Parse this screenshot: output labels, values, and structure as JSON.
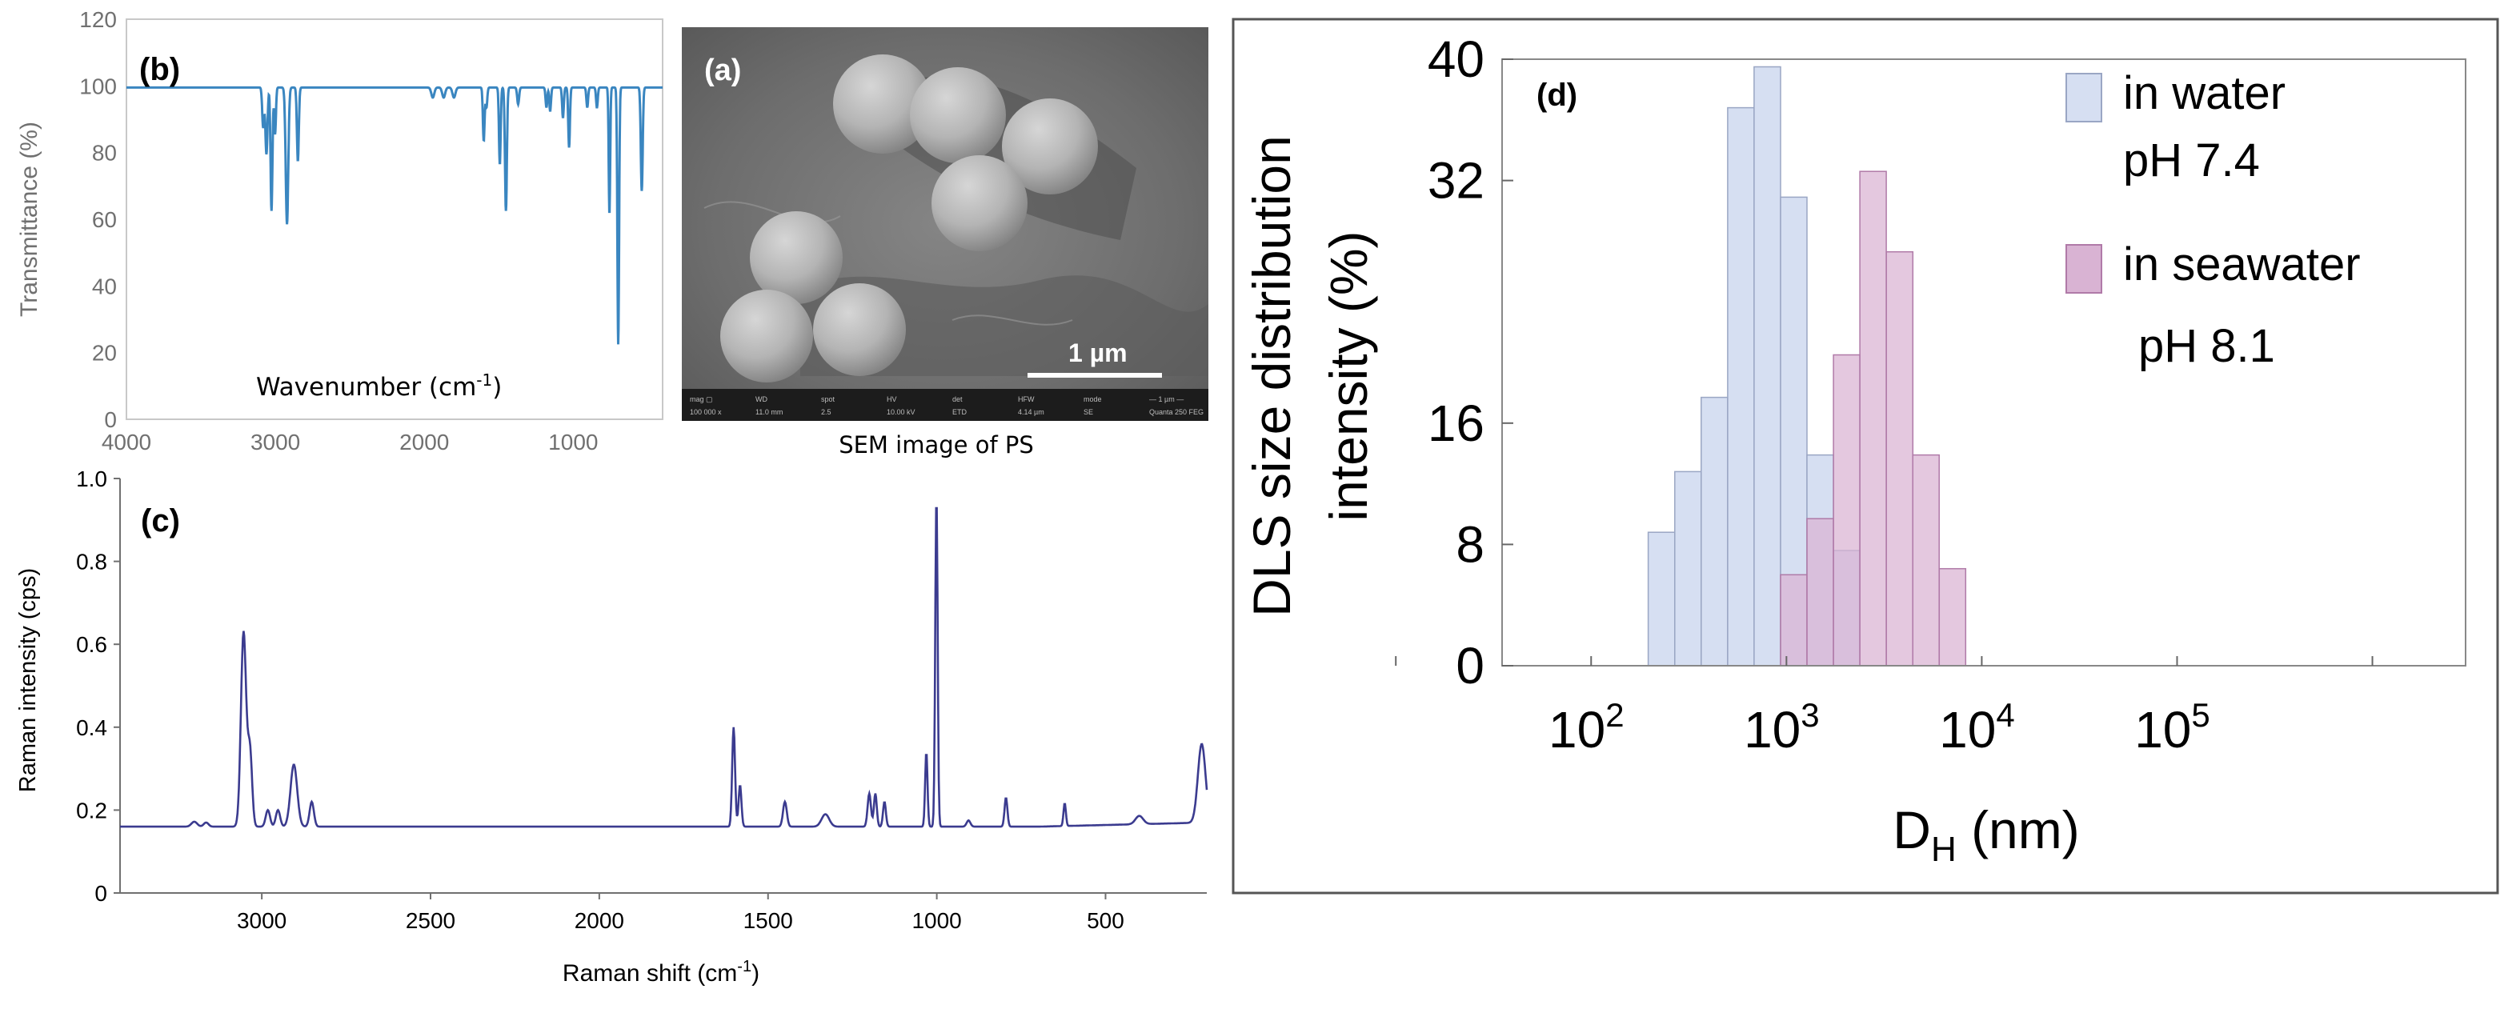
{
  "colors": {
    "ir_line": "#3a86c0",
    "raman_line": "#3b3b8f",
    "water_fill": "#d6dff2",
    "water_stroke": "#9aa6c4",
    "seawater_fill": "#d9b3d3",
    "seawater_stroke": "#b07aa8",
    "overlap_fill": "#bfa2cf",
    "axis_grey": "#707070"
  },
  "chart_data": [
    {
      "panel": "b",
      "type": "line",
      "panel_label": "(b)",
      "title": "",
      "xlabel": "Wavenumber (cm",
      "xlabel_sup": "-1",
      "xlabel_tail": ")",
      "ylabel": "Transmittance (%)",
      "xlim": [
        4000,
        400
      ],
      "ylim": [
        0,
        120
      ],
      "x_ticks": [
        4000,
        3000,
        2000,
        1000
      ],
      "x_tick_labels": [
        "4000",
        "3000",
        "2000",
        "1000"
      ],
      "y_ticks": [
        0,
        20,
        40,
        60,
        80,
        100,
        120
      ],
      "y_tick_labels": [
        "0",
        "20",
        "40",
        "60",
        "80",
        "100",
        "120"
      ],
      "baseline": 99.5,
      "peaks": [
        {
          "center": 3082,
          "depth": 12,
          "width": 9
        },
        {
          "center": 3060,
          "depth": 20,
          "width": 10
        },
        {
          "center": 3026,
          "depth": 37,
          "width": 9
        },
        {
          "center": 3002,
          "depth": 14,
          "width": 8
        },
        {
          "center": 2922,
          "depth": 41,
          "width": 12
        },
        {
          "center": 2849,
          "depth": 22,
          "width": 9
        },
        {
          "center": 1943,
          "depth": 3,
          "width": 14
        },
        {
          "center": 1870,
          "depth": 3,
          "width": 14
        },
        {
          "center": 1801,
          "depth": 3,
          "width": 14
        },
        {
          "center": 1601,
          "depth": 16,
          "width": 8
        },
        {
          "center": 1583,
          "depth": 6,
          "width": 8
        },
        {
          "center": 1493,
          "depth": 23,
          "width": 8
        },
        {
          "center": 1452,
          "depth": 37,
          "width": 9
        },
        {
          "center": 1370,
          "depth": 5,
          "width": 9
        },
        {
          "center": 1180,
          "depth": 6,
          "width": 8
        },
        {
          "center": 1155,
          "depth": 7,
          "width": 8
        },
        {
          "center": 1069,
          "depth": 9,
          "width": 8
        },
        {
          "center": 1028,
          "depth": 18,
          "width": 8
        },
        {
          "center": 906,
          "depth": 6,
          "width": 8
        },
        {
          "center": 841,
          "depth": 6,
          "width": 8
        },
        {
          "center": 757,
          "depth": 38,
          "width": 7
        },
        {
          "center": 698,
          "depth": 77,
          "width": 8
        },
        {
          "center": 540,
          "depth": 31,
          "width": 9
        }
      ]
    },
    {
      "panel": "a",
      "type": "image",
      "panel_label": "(a)",
      "scale_bar": "1 µm",
      "caption": "SEM image of PS",
      "info_bar": [
        "mag ▢",
        "WD",
        "spot",
        "HV",
        "det",
        "HFW",
        "mode",
        "— 1 µm —"
      ],
      "info_bar_values": [
        "100 000 x",
        "11.0 mm",
        "2.5",
        "10.00 kV",
        "ETD",
        "4.14 µm",
        "SE",
        "Quanta 250 FEG"
      ]
    },
    {
      "panel": "d",
      "type": "bar",
      "panel_label": "(d)",
      "title": "",
      "xlabel": "D",
      "xlabel_sub": "H",
      "xlabel_tail": " (nm)",
      "ylabel_line1": "DLS size distribution",
      "ylabel_line2": "intensity (%)",
      "x_scale": "log",
      "xlim": [
        35,
        3000000
      ],
      "ylim": [
        0,
        40
      ],
      "y_ticks": [
        0,
        8,
        16,
        32,
        40
      ],
      "y_tick_labels": [
        "0",
        "8",
        "16",
        "32",
        "40"
      ],
      "x_tick_labels": [
        {
          "base": "10",
          "exp": "2"
        },
        {
          "base": "10",
          "exp": "3"
        },
        {
          "base": "10",
          "exp": "4"
        },
        {
          "base": "10",
          "exp": "5"
        }
      ],
      "x_ticks": [
        100,
        1000,
        10000,
        100000
      ],
      "minor_ticks": [
        10,
        1000000
      ],
      "series": [
        {
          "name": "in water",
          "name_line2": "pH 7.4",
          "bins": [
            {
              "from": 196,
              "to": 268,
              "value": 8.8
            },
            {
              "from": 268,
              "to": 366,
              "value": 12.8
            },
            {
              "from": 366,
              "to": 500,
              "value": 17.7
            },
            {
              "from": 500,
              "to": 683,
              "value": 36.8
            },
            {
              "from": 683,
              "to": 933,
              "value": 39.5
            },
            {
              "from": 933,
              "to": 1274,
              "value": 30.9
            },
            {
              "from": 1274,
              "to": 1741,
              "value": 13.9
            },
            {
              "from": 1741,
              "to": 2377,
              "value": 7.6
            }
          ]
        },
        {
          "name": "in seawater",
          "name_line2": "pH 8.1",
          "bins": [
            {
              "from": 933,
              "to": 1274,
              "value": 6.0
            },
            {
              "from": 1274,
              "to": 1741,
              "value": 9.7
            },
            {
              "from": 1741,
              "to": 2377,
              "value": 20.5
            },
            {
              "from": 2377,
              "to": 3246,
              "value": 32.6
            },
            {
              "from": 3246,
              "to": 4434,
              "value": 27.3
            },
            {
              "from": 4434,
              "to": 6056,
              "value": 13.9
            },
            {
              "from": 6056,
              "to": 8271,
              "value": 6.4
            }
          ]
        }
      ],
      "legend": "top-right"
    },
    {
      "panel": "c",
      "type": "line",
      "panel_label": "(c)",
      "title": "",
      "xlabel": "Raman shift (cm",
      "xlabel_sup": "-1",
      "xlabel_tail": ")",
      "ylabel": "Raman intensity (cps)",
      "xlim": [
        3420,
        200
      ],
      "ylim": [
        0,
        1.0
      ],
      "x_ticks": [
        3000,
        2500,
        2000,
        1500,
        1000,
        500
      ],
      "x_tick_labels": [
        "3000",
        "2500",
        "2000",
        "1500",
        "1000",
        "500"
      ],
      "y_ticks": [
        0,
        0.2,
        0.4,
        0.6,
        0.8,
        1.0
      ],
      "y_tick_labels": [
        "0",
        "0.2",
        "0.4",
        "0.6",
        "0.8",
        "1.0"
      ],
      "baseline": 0.16,
      "peaks": [
        {
          "center": 3200,
          "height": 0.012,
          "width": 12
        },
        {
          "center": 3165,
          "height": 0.01,
          "width": 10
        },
        {
          "center": 3054,
          "height": 0.47,
          "width": 11
        },
        {
          "center": 3035,
          "height": 0.18,
          "width": 9
        },
        {
          "center": 2982,
          "height": 0.04,
          "width": 9
        },
        {
          "center": 2952,
          "height": 0.04,
          "width": 9
        },
        {
          "center": 2905,
          "height": 0.15,
          "width": 14
        },
        {
          "center": 2852,
          "height": 0.06,
          "width": 9
        },
        {
          "center": 1602,
          "height": 0.24,
          "width": 6
        },
        {
          "center": 1583,
          "height": 0.1,
          "width": 6
        },
        {
          "center": 1450,
          "height": 0.06,
          "width": 8
        },
        {
          "center": 1330,
          "height": 0.03,
          "width": 16
        },
        {
          "center": 1200,
          "height": 0.08,
          "width": 7
        },
        {
          "center": 1182,
          "height": 0.08,
          "width": 6
        },
        {
          "center": 1155,
          "height": 0.06,
          "width": 6
        },
        {
          "center": 1031,
          "height": 0.18,
          "width": 5
        },
        {
          "center": 1001,
          "height": 0.8,
          "width": 5
        },
        {
          "center": 906,
          "height": 0.015,
          "width": 8
        },
        {
          "center": 795,
          "height": 0.07,
          "width": 6
        },
        {
          "center": 621,
          "height": 0.055,
          "width": 5
        },
        {
          "center": 400,
          "height": 0.02,
          "width": 16
        },
        {
          "center": 215,
          "height": 0.19,
          "width": 16
        }
      ]
    }
  ]
}
